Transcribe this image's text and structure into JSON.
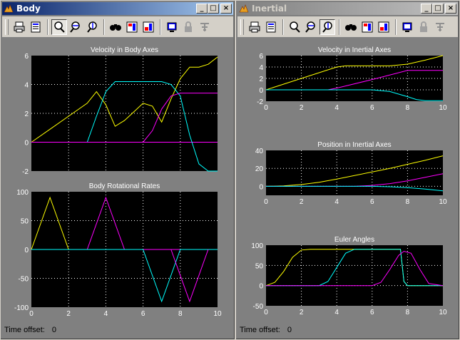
{
  "windows": [
    {
      "id": "body",
      "title": "Body",
      "active": true,
      "time_offset_label": "Time offset:",
      "time_offset_value": "0",
      "plots": [
        {
          "title": "Velocity in Body Axes",
          "xlim": [
            0,
            10
          ],
          "ylim": [
            -2,
            6
          ],
          "xticks": [
            0,
            2,
            4,
            6,
            8,
            10
          ],
          "yticks": [
            -2,
            0,
            2,
            4,
            6
          ],
          "show_xticklabels": false,
          "series": [
            {
              "color": "#ffff00",
              "x": [
                0,
                1,
                2,
                3,
                3.5,
                4,
                4.5,
                5,
                5.5,
                6,
                6.5,
                7,
                7.5,
                8,
                8.5,
                9,
                9.5,
                10
              ],
              "y": [
                0,
                0.9,
                1.8,
                2.7,
                3.5,
                2.6,
                1.1,
                1.5,
                2.1,
                2.7,
                2.5,
                1.4,
                3.0,
                4.4,
                5.2,
                5.2,
                5.4,
                5.9
              ]
            },
            {
              "color": "#ff00ff",
              "x": [
                0,
                8,
                8.4,
                9,
                10
              ],
              "y": [
                0,
                0,
                0,
                0,
                0
              ]
            },
            {
              "color": "#00ffff",
              "x": [
                0,
                3,
                3.5,
                4,
                4.5,
                5,
                6,
                7,
                7.5,
                8,
                8.5,
                9,
                9.5,
                10
              ],
              "y": [
                0,
                0,
                1.8,
                3.5,
                4.2,
                4.2,
                4.2,
                4.2,
                4.0,
                3.2,
                0.5,
                -1.5,
                -2,
                -2
              ]
            },
            {
              "color": "#ff00ff",
              "x": [
                0,
                6,
                6.5,
                7,
                7.5,
                8,
                8.5,
                9,
                10
              ],
              "y": [
                0,
                0,
                0.8,
                2.3,
                3.2,
                3.4,
                3.4,
                3.4,
                3.4
              ]
            }
          ]
        },
        {
          "title": "Body Rotational Rates",
          "xlim": [
            0,
            10
          ],
          "ylim": [
            -100,
            100
          ],
          "xticks": [
            0,
            2,
            4,
            6,
            8,
            10
          ],
          "yticks": [
            -100,
            -50,
            0,
            50,
            100
          ],
          "xticklabels": [
            "0",
            "2",
            "4",
            "6",
            "8",
            "10"
          ],
          "series": [
            {
              "color": "#ffff00",
              "x": [
                0,
                1,
                2,
                10
              ],
              "y": [
                0,
                90,
                0,
                0
              ]
            },
            {
              "color": "#ff00ff",
              "x": [
                0,
                3,
                4,
                5,
                10
              ],
              "y": [
                0,
                0,
                90,
                0,
                0
              ]
            },
            {
              "color": "#00ffff",
              "x": [
                0,
                6,
                7,
                8,
                10
              ],
              "y": [
                0,
                0,
                -90,
                0,
                0
              ]
            },
            {
              "color": "#ff00ff",
              "x": [
                7.5,
                8,
                8.5,
                9,
                9.5
              ],
              "y": [
                0,
                -45,
                -90,
                -45,
                0
              ]
            }
          ]
        }
      ]
    },
    {
      "id": "inertial",
      "title": "Inertial",
      "active": false,
      "time_offset_label": "Time offset:",
      "time_offset_value": "0",
      "plots": [
        {
          "title": "Velocity in Inertial Axes",
          "xlim": [
            0,
            10
          ],
          "ylim": [
            -2,
            6
          ],
          "xticks": [
            0,
            2,
            4,
            6,
            8,
            10
          ],
          "yticks": [
            -2,
            0,
            2,
            4,
            6
          ],
          "xticklabels": [
            "0",
            "2",
            "4",
            "6",
            "8",
            "10"
          ],
          "series": [
            {
              "color": "#ffff00",
              "x": [
                0,
                2,
                4,
                4.5,
                7,
                8,
                9,
                10
              ],
              "y": [
                0,
                2,
                4,
                4.2,
                4.2,
                4.5,
                5.2,
                6
              ]
            },
            {
              "color": "#ff00ff",
              "x": [
                0,
                3.5,
                4,
                6,
                7.5,
                8,
                9,
                10
              ],
              "y": [
                0,
                0,
                0.3,
                1.8,
                3.0,
                3.4,
                3.4,
                3.4
              ]
            },
            {
              "color": "#00ffff",
              "x": [
                0,
                6,
                7,
                8,
                8.5,
                9,
                10
              ],
              "y": [
                0,
                0,
                -0.3,
                -1.2,
                -1.7,
                -1.9,
                -1.9
              ]
            }
          ]
        },
        {
          "title": "Position in Inertial Axes",
          "xlim": [
            0,
            10
          ],
          "ylim": [
            -10,
            40
          ],
          "xticks": [
            0,
            2,
            4,
            6,
            8,
            10
          ],
          "yticks": [
            0,
            20,
            40
          ],
          "xticklabels": [
            "0",
            "2",
            "4",
            "6",
            "8",
            "10"
          ],
          "series": [
            {
              "color": "#ffff00",
              "x": [
                0,
                1,
                2,
                3,
                4,
                5,
                6,
                7,
                8,
                9,
                10
              ],
              "y": [
                0,
                0.5,
                2,
                4.5,
                8,
                12,
                16,
                20,
                24.5,
                29,
                34
              ]
            },
            {
              "color": "#ff00ff",
              "x": [
                0,
                5,
                6,
                7,
                8,
                9,
                10
              ],
              "y": [
                0,
                0,
                1,
                3,
                6,
                10,
                14
              ]
            },
            {
              "color": "#00ffff",
              "x": [
                0,
                6,
                7,
                8,
                9,
                10
              ],
              "y": [
                0,
                0,
                -0.5,
                -1.5,
                -3,
                -5
              ]
            }
          ]
        },
        {
          "title": "Euler Angles",
          "xlim": [
            0,
            10
          ],
          "ylim": [
            -50,
            100
          ],
          "xticks": [
            0,
            2,
            4,
            6,
            8,
            10
          ],
          "yticks": [
            -50,
            0,
            50,
            100
          ],
          "xticklabels": [
            "0",
            "2",
            "4",
            "6",
            "8",
            "10"
          ],
          "series": [
            {
              "color": "#ffff00",
              "x": [
                0,
                0.5,
                1,
                1.5,
                2,
                2.5,
                3,
                7.6,
                7.8,
                8,
                10
              ],
              "y": [
                0,
                8,
                35,
                70,
                88,
                90,
                90,
                90,
                10,
                0,
                0
              ]
            },
            {
              "color": "#00ffff",
              "x": [
                0,
                3,
                3.5,
                4,
                4.5,
                5,
                5.5,
                7.6,
                7.8,
                8,
                10
              ],
              "y": [
                0,
                0,
                10,
                45,
                80,
                90,
                90,
                90,
                10,
                0,
                0
              ]
            },
            {
              "color": "#ff00ff",
              "x": [
                0,
                6,
                6.5,
                7,
                7.5,
                7.8,
                8.2,
                8.7,
                9.2,
                10
              ],
              "y": [
                0,
                0,
                8,
                40,
                75,
                85,
                80,
                40,
                5,
                0
              ]
            }
          ]
        }
      ]
    }
  ]
}
